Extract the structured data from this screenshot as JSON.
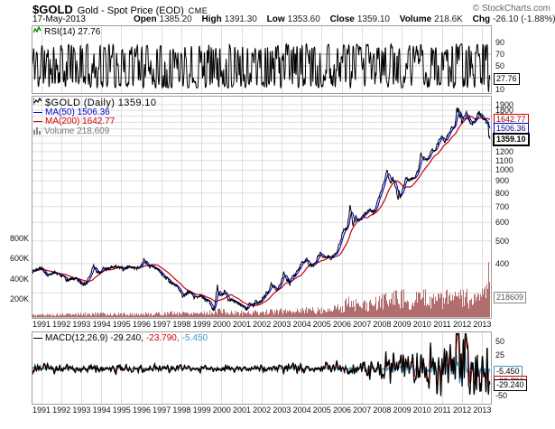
{
  "header": {
    "symbol": "$GOLD",
    "name": "Gold - Spot Price (EOD)",
    "exchange": "CME",
    "site": "© StockCharts.com",
    "date": "17-May-2013",
    "quote": [
      {
        "label": "Open",
        "value": "1385.20"
      },
      {
        "label": "High",
        "value": "1391.30"
      },
      {
        "label": "Low",
        "value": "1353.60"
      },
      {
        "label": "Close",
        "value": "1359.10"
      },
      {
        "label": "Volume",
        "value": "218.6K"
      },
      {
        "label": "Chg",
        "value": "-26.10 (-1.88%)"
      }
    ]
  },
  "icons": {
    "down_arrow": "▼",
    "line_dash": "—"
  },
  "palette": {
    "price": "#000000",
    "ma50": "#0000cc",
    "ma200": "#cc0000",
    "volume_bar": "#b26e6e",
    "macd_line": "#000000",
    "macd_signal": "#cc0000",
    "macd_hist": "#3399cc",
    "grid": "#dcdcdc",
    "level_line": "#aaaaaa",
    "panel_border": "#a0a0a0",
    "down": "#990000",
    "credit": "#666666"
  },
  "axis": {
    "years": [
      1991,
      1992,
      1993,
      1994,
      1995,
      1996,
      1997,
      1998,
      1999,
      2000,
      2001,
      2002,
      2003,
      2004,
      2005,
      2006,
      2007,
      2008,
      2009,
      2010,
      2011,
      2012,
      2013
    ]
  },
  "chart_data": [
    {
      "id": "rsi",
      "type": "line",
      "title": "RSI(14)",
      "legend_label": "RSI(14) 27.76",
      "last_value": 27.76,
      "ylim": [
        0,
        100
      ],
      "hlines": [
        70,
        50,
        30
      ],
      "right_ticks": [
        90,
        70,
        50,
        10
      ],
      "tag": {
        "text": "27.76",
        "value": 27.76
      },
      "noise_seed": 11,
      "end_anchors": [
        [
          2013.38,
          27.76,
          0.05
        ]
      ]
    },
    {
      "id": "price",
      "type": "line",
      "style": "daily close with moving averages and volume overlay",
      "title": "$GOLD (Daily)",
      "log_scale": true,
      "legend": [
        {
          "text": "$GOLD (Daily) 1359.10"
        },
        {
          "text": "MA(50) 1506.36",
          "color": "#0000cc"
        },
        {
          "text": "MA(200) 1642.77",
          "color": "#cc0000"
        },
        {
          "text": "Volume 218,609",
          "color": "#777777"
        }
      ],
      "right_ticks": [
        400,
        500,
        600,
        700,
        800,
        900,
        1000,
        1100,
        1200,
        1300,
        1400,
        1500,
        1600,
        1700,
        1800,
        1900
      ],
      "left_volume_ticks": [
        {
          "label": "800K",
          "value": 800
        },
        {
          "label": "600K",
          "value": 600
        },
        {
          "label": "400K",
          "value": 400
        },
        {
          "label": "200K",
          "value": 200
        }
      ],
      "tags": [
        {
          "text": "1642.77",
          "value": 1642.77,
          "cls": "red"
        },
        {
          "text": "1506.36",
          "value": 1506.36,
          "cls": "blue"
        },
        {
          "text": "218609",
          "volume_k": 218.6,
          "cls": "gray"
        },
        {
          "text": "1359.10",
          "value": 1359.1,
          "cls": "bold"
        }
      ],
      "series": [
        {
          "name": "$GOLD close",
          "anchors": [
            [
              1990.55,
              372
            ],
            [
              1991.0,
              386
            ],
            [
              1991.15,
              363
            ],
            [
              1991.4,
              358
            ],
            [
              1991.6,
              368
            ],
            [
              1991.85,
              357
            ],
            [
              1992.1,
              351
            ],
            [
              1992.3,
              338
            ],
            [
              1992.55,
              345
            ],
            [
              1992.75,
              343
            ],
            [
              1992.95,
              333
            ],
            [
              1993.2,
              328
            ],
            [
              1993.35,
              345
            ],
            [
              1993.5,
              372
            ],
            [
              1993.6,
              392
            ],
            [
              1993.75,
              370
            ],
            [
              1993.9,
              362
            ],
            [
              1994.1,
              383
            ],
            [
              1994.3,
              377
            ],
            [
              1994.5,
              385
            ],
            [
              1994.7,
              388
            ],
            [
              1994.9,
              383
            ],
            [
              1995.1,
              377
            ],
            [
              1995.3,
              390
            ],
            [
              1995.5,
              386
            ],
            [
              1995.7,
              383
            ],
            [
              1995.9,
              388
            ],
            [
              1996.05,
              405
            ],
            [
              1996.12,
              414
            ],
            [
              1996.3,
              395
            ],
            [
              1996.5,
              387
            ],
            [
              1996.7,
              383
            ],
            [
              1996.9,
              372
            ],
            [
              1997.1,
              352
            ],
            [
              1997.3,
              345
            ],
            [
              1997.5,
              330
            ],
            [
              1997.7,
              323
            ],
            [
              1997.9,
              305
            ],
            [
              1998.05,
              289
            ],
            [
              1998.25,
              301
            ],
            [
              1998.4,
              308
            ],
            [
              1998.6,
              286
            ],
            [
              1998.75,
              290
            ],
            [
              1998.95,
              292
            ],
            [
              1999.15,
              285
            ],
            [
              1999.35,
              275
            ],
            [
              1999.5,
              258
            ],
            [
              1999.62,
              254
            ],
            [
              1999.73,
              300
            ],
            [
              1999.78,
              326
            ],
            [
              1999.85,
              300
            ],
            [
              1999.95,
              288
            ],
            [
              2000.1,
              295
            ],
            [
              2000.15,
              310
            ],
            [
              2000.3,
              278
            ],
            [
              2000.5,
              280
            ],
            [
              2000.7,
              274
            ],
            [
              2000.9,
              268
            ],
            [
              2001.1,
              262
            ],
            [
              2001.25,
              257
            ],
            [
              2001.4,
              272
            ],
            [
              2001.55,
              266
            ],
            [
              2001.7,
              276
            ],
            [
              2001.8,
              271
            ],
            [
              2001.95,
              276
            ],
            [
              2002.1,
              290
            ],
            [
              2002.3,
              303
            ],
            [
              2002.45,
              326
            ],
            [
              2002.6,
              314
            ],
            [
              2002.75,
              312
            ],
            [
              2002.9,
              322
            ],
            [
              2003.05,
              352
            ],
            [
              2003.1,
              368
            ],
            [
              2003.25,
              342
            ],
            [
              2003.4,
              330
            ],
            [
              2003.55,
              355
            ],
            [
              2003.7,
              364
            ],
            [
              2003.85,
              378
            ],
            [
              2003.98,
              410
            ],
            [
              2004.1,
              408
            ],
            [
              2004.25,
              422
            ],
            [
              2004.35,
              390
            ],
            [
              2004.5,
              388
            ],
            [
              2004.65,
              400
            ],
            [
              2004.8,
              425
            ],
            [
              2004.92,
              450
            ],
            [
              2005.05,
              426
            ],
            [
              2005.2,
              428
            ],
            [
              2005.35,
              432
            ],
            [
              2005.45,
              418
            ],
            [
              2005.6,
              437
            ],
            [
              2005.75,
              456
            ],
            [
              2005.9,
              490
            ],
            [
              2006.0,
              530
            ],
            [
              2006.1,
              555
            ],
            [
              2006.25,
              560
            ],
            [
              2006.35,
              640
            ],
            [
              2006.4,
              715
            ],
            [
              2006.5,
              630
            ],
            [
              2006.55,
              575
            ],
            [
              2006.7,
              635
            ],
            [
              2006.8,
              600
            ],
            [
              2006.95,
              630
            ],
            [
              2007.1,
              650
            ],
            [
              2007.25,
              665
            ],
            [
              2007.4,
              680
            ],
            [
              2007.5,
              655
            ],
            [
              2007.65,
              675
            ],
            [
              2007.75,
              730
            ],
            [
              2007.9,
              790
            ],
            [
              2008.0,
              840
            ],
            [
              2008.1,
              890
            ],
            [
              2008.2,
              975
            ],
            [
              2008.25,
              1000
            ],
            [
              2008.35,
              915
            ],
            [
              2008.45,
              870
            ],
            [
              2008.55,
              930
            ],
            [
              2008.65,
              850
            ],
            [
              2008.75,
              790
            ],
            [
              2008.8,
              740
            ],
            [
              2008.85,
              820
            ],
            [
              2008.9,
              750
            ],
            [
              2008.97,
              800
            ],
            [
              2009.1,
              870
            ],
            [
              2009.18,
              940
            ],
            [
              2009.3,
              900
            ],
            [
              2009.45,
              925
            ],
            [
              2009.6,
              935
            ],
            [
              2009.7,
              950
            ],
            [
              2009.8,
              1000
            ],
            [
              2009.88,
              1090
            ],
            [
              2009.93,
              1180
            ],
            [
              2010.05,
              1120
            ],
            [
              2010.15,
              1105
            ],
            [
              2010.3,
              1115
            ],
            [
              2010.45,
              1210
            ],
            [
              2010.5,
              1240
            ],
            [
              2010.6,
              1190
            ],
            [
              2010.72,
              1250
            ],
            [
              2010.85,
              1340
            ],
            [
              2010.95,
              1400
            ],
            [
              2011.05,
              1360
            ],
            [
              2011.15,
              1335
            ],
            [
              2011.3,
              1430
            ],
            [
              2011.45,
              1500
            ],
            [
              2011.55,
              1520
            ],
            [
              2011.65,
              1560
            ],
            [
              2011.7,
              1700
            ],
            [
              2011.73,
              1890
            ],
            [
              2011.78,
              1760
            ],
            [
              2011.82,
              1860
            ],
            [
              2011.88,
              1700
            ],
            [
              2011.92,
              1730
            ],
            [
              2011.98,
              1590
            ],
            [
              2012.05,
              1660
            ],
            [
              2012.15,
              1730
            ],
            [
              2012.2,
              1770
            ],
            [
              2012.3,
              1670
            ],
            [
              2012.4,
              1590
            ],
            [
              2012.5,
              1570
            ],
            [
              2012.6,
              1610
            ],
            [
              2012.7,
              1660
            ],
            [
              2012.78,
              1770
            ],
            [
              2012.85,
              1750
            ],
            [
              2012.95,
              1700
            ],
            [
              2013.05,
              1660
            ],
            [
              2013.15,
              1645
            ],
            [
              2013.22,
              1590
            ],
            [
              2013.26,
              1600
            ],
            [
              2013.3,
              1560
            ],
            [
              2013.33,
              1370
            ],
            [
              2013.36,
              1420
            ],
            [
              2013.38,
              1359.1
            ]
          ]
        },
        {
          "name": "MA(50)",
          "window_days": 50,
          "last": 1506.36
        },
        {
          "name": "MA(200)",
          "window_days": 200,
          "last": 1642.77
        }
      ],
      "volume": {
        "last": 218609,
        "anchors_k": [
          [
            1990.55,
            22
          ],
          [
            1991.5,
            26
          ],
          [
            1992.5,
            28
          ],
          [
            1993.5,
            34
          ],
          [
            1994.5,
            32
          ],
          [
            1995.5,
            30
          ],
          [
            1996.5,
            34
          ],
          [
            1997.5,
            40
          ],
          [
            1998.5,
            44
          ],
          [
            1999.6,
            48
          ],
          [
            1999.78,
            75
          ],
          [
            2000.3,
            42
          ],
          [
            2001.3,
            44
          ],
          [
            2002.3,
            52
          ],
          [
            2003.3,
            62
          ],
          [
            2004.3,
            72
          ],
          [
            2005.3,
            70
          ],
          [
            2006.0,
            100
          ],
          [
            2006.4,
            150
          ],
          [
            2006.8,
            105
          ],
          [
            2007.5,
            115
          ],
          [
            2008.2,
            175
          ],
          [
            2008.85,
            195
          ],
          [
            2009.5,
            160
          ],
          [
            2010.0,
            175
          ],
          [
            2010.8,
            185
          ],
          [
            2011.5,
            175
          ],
          [
            2011.75,
            235
          ],
          [
            2012.0,
            195
          ],
          [
            2012.5,
            165
          ],
          [
            2012.9,
            175
          ],
          [
            2013.1,
            185
          ],
          [
            2013.28,
            240
          ],
          [
            2013.32,
            640
          ],
          [
            2013.35,
            400
          ],
          [
            2013.38,
            219
          ]
        ]
      },
      "noise_seed": 7,
      "end_anchors": [
        [
          2013.38,
          1359.1,
          0.02
        ]
      ],
      "xlim": [
        1990.55,
        2013.38
      ]
    },
    {
      "id": "macd",
      "type": "line",
      "title": "MACD(12,26,9)",
      "legend_macd": "MACD(12,26,9) -29.240,",
      "legend_signal": " -23.790,",
      "legend_hist": " -5.450",
      "last_values": {
        "macd": -29.24,
        "signal": -23.79,
        "hist": -5.45
      },
      "right_ticks": [
        50,
        25,
        -50
      ],
      "tags": [
        {
          "text": "-5.450",
          "value": -5.45,
          "cls": "ltblue"
        },
        {
          "text": "-23.790",
          "value": -23.79,
          "cls": "red"
        },
        {
          "text": "-29.240",
          "value": -29.24,
          "cls": ""
        }
      ],
      "noise_seed": 23,
      "anchors": [
        [
          2011.73,
          62,
          0.05
        ],
        [
          2013.33,
          -42,
          0.05
        ],
        [
          2013.38,
          -29.24,
          0.025
        ]
      ],
      "signal_end_anchor": [
        [
          2013.38,
          -23.79,
          0.025
        ]
      ],
      "hist_end_anchor": [
        [
          2013.38,
          -5.45,
          0.03
        ]
      ]
    }
  ]
}
